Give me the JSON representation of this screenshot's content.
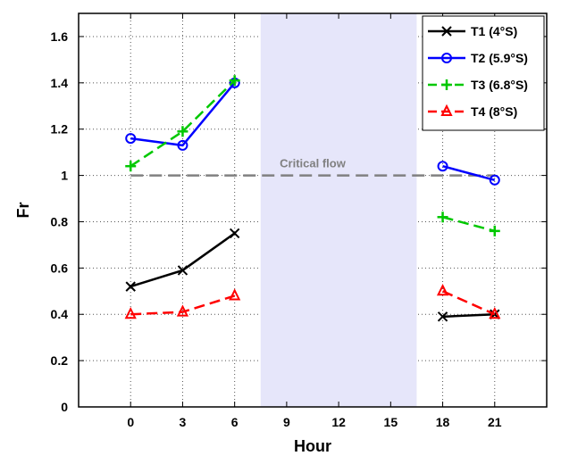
{
  "chart_data": {
    "type": "line",
    "xlabel": "Hour",
    "ylabel": "Fr",
    "xlim": [
      -3,
      24
    ],
    "ylim": [
      0,
      1.7
    ],
    "xticks": [
      0,
      3,
      6,
      9,
      12,
      15,
      18,
      21
    ],
    "yticks": [
      0,
      0.2,
      0.4,
      0.6,
      0.8,
      1,
      1.2,
      1.4,
      1.6
    ],
    "ytick_labels": [
      "0",
      "0.2",
      "0.4",
      "0.6",
      "0.8",
      "1",
      "1.2",
      "1.4",
      "1.6"
    ],
    "grid": true,
    "legend_position": "top-right",
    "shaded_region": {
      "x": [
        7.5,
        16.5
      ],
      "color": "#e6e6fa"
    },
    "reference_line": {
      "y": 1.0,
      "label": "Critical flow",
      "color": "#808080"
    },
    "series": [
      {
        "name": "T1 (4°S)",
        "color": "#000000",
        "marker": "x",
        "dash": "solid",
        "segments": [
          {
            "x": [
              0,
              3,
              6
            ],
            "y": [
              0.52,
              0.59,
              0.75
            ]
          },
          {
            "x": [
              18,
              21
            ],
            "y": [
              0.39,
              0.4
            ]
          }
        ]
      },
      {
        "name": "T2 (5.9°S)",
        "color": "#0000ff",
        "marker": "circle",
        "dash": "solid",
        "segments": [
          {
            "x": [
              0,
              3,
              6
            ],
            "y": [
              1.16,
              1.13,
              1.4
            ]
          },
          {
            "x": [
              18,
              21
            ],
            "y": [
              1.04,
              0.98
            ]
          }
        ]
      },
      {
        "name": "T3 (6.8°S)",
        "color": "#00c800",
        "marker": "plus",
        "dash": "dashed",
        "segments": [
          {
            "x": [
              0,
              3,
              6
            ],
            "y": [
              1.04,
              1.19,
              1.41
            ]
          },
          {
            "x": [
              18,
              21
            ],
            "y": [
              0.82,
              0.76
            ]
          }
        ]
      },
      {
        "name": "T4 (8°S)",
        "color": "#ff0000",
        "marker": "triangle",
        "dash": "dashed",
        "segments": [
          {
            "x": [
              0,
              3,
              6
            ],
            "y": [
              0.4,
              0.41,
              0.48
            ]
          },
          {
            "x": [
              18,
              21
            ],
            "y": [
              0.5,
              0.4
            ]
          }
        ]
      }
    ]
  }
}
